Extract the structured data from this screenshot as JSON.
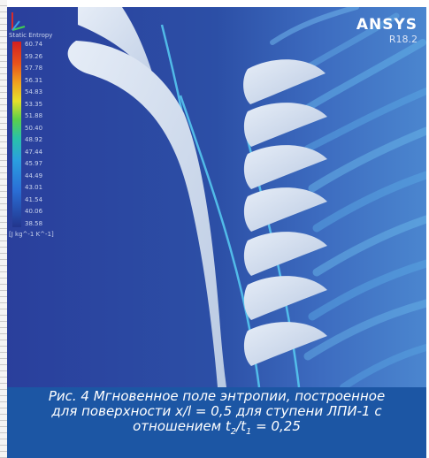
{
  "brand": {
    "name": "ANSYS",
    "version": "R18.2"
  },
  "legend": {
    "title": "Static Entropy",
    "ticks": [
      "60.74",
      "59.26",
      "57.78",
      "56.31",
      "54.83",
      "53.35",
      "51.88",
      "50.40",
      "48.92",
      "47.44",
      "45.97",
      "44.49",
      "43.01",
      "41.54",
      "40.06",
      "38.58"
    ],
    "unit": "[J kg^-1 K^-1]"
  },
  "caption": {
    "line1": "Рис. 4 Мгновенное поле энтропии, построенное",
    "line2": "для поверхности x/l = 0,5 для ступени ЛПИ-1 с",
    "line3_prefix": "отношением  t",
    "sub2": "2",
    "slash": "/t",
    "sub1": "1",
    "line3_suffix": " = 0,25"
  },
  "colors": {
    "field": "#2c4fa6",
    "blade": "#c9d6ea",
    "caption_bg": "#1c56a4",
    "wake": "#4fb3e6"
  }
}
